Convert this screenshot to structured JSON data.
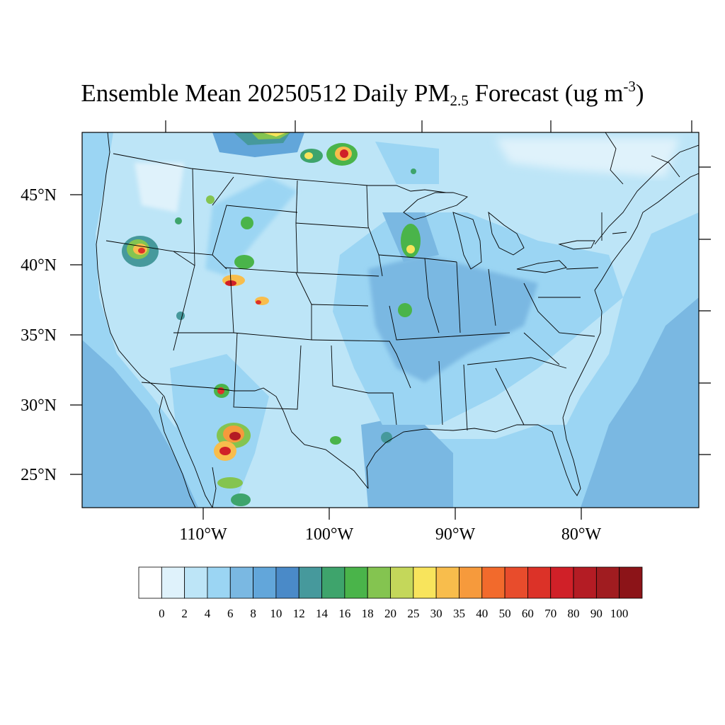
{
  "title": {
    "main": "Ensemble Mean 20250512 Daily PM",
    "sub": "2.5",
    "mid": " Forecast (ug m",
    "sup": "-3",
    "end": ")"
  },
  "lat_ticks": [
    "45°N",
    "40°N",
    "35°N",
    "30°N",
    "25°N"
  ],
  "lon_ticks": [
    "110°W",
    "100°W",
    "90°W",
    "80°W"
  ],
  "colorbar": {
    "labels": [
      "0",
      "2",
      "4",
      "6",
      "8",
      "10",
      "12",
      "14",
      "16",
      "18",
      "20",
      "25",
      "30",
      "35",
      "40",
      "50",
      "60",
      "70",
      "80",
      "90",
      "100"
    ],
    "colors": [
      "#ffffff",
      "#dff2fb",
      "#bde5f7",
      "#9bd5f3",
      "#7ab8e2",
      "#62a6da",
      "#4a8ac8",
      "#46999c",
      "#3ea46c",
      "#4ab44a",
      "#84c450",
      "#c4d75a",
      "#f8e45c",
      "#f8bd4c",
      "#f69a3c",
      "#f26a2c",
      "#e84c2c",
      "#dc3228",
      "#d02028",
      "#b41c24",
      "#a01c20",
      "#8c1418"
    ]
  }
}
